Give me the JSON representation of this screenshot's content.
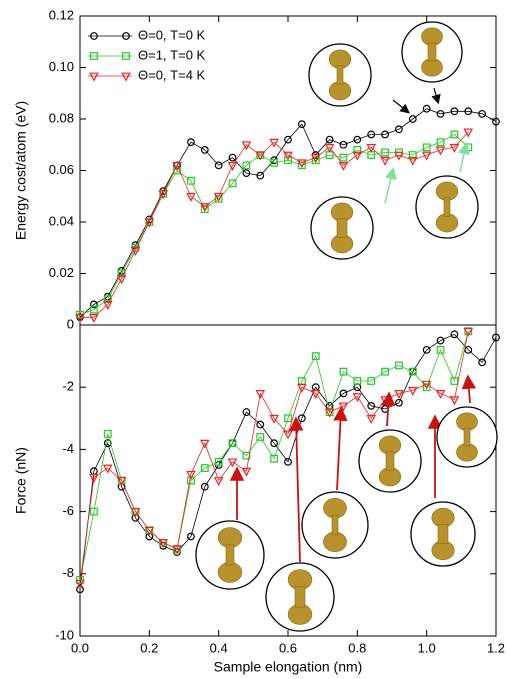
{
  "chart_data": [
    {
      "type": "line",
      "ylabel": "Energy cost/atom (eV)",
      "x": [
        0,
        0.04,
        0.08,
        0.12,
        0.16,
        0.2,
        0.24,
        0.28,
        0.32,
        0.36,
        0.4,
        0.44,
        0.48,
        0.52,
        0.56,
        0.6,
        0.64,
        0.68,
        0.72,
        0.76,
        0.8,
        0.84,
        0.88,
        0.92,
        0.96,
        1.0,
        1.04,
        1.08,
        1.12,
        1.16,
        1.2
      ],
      "xlim": [
        0,
        1.2
      ],
      "ylim": [
        0,
        0.12
      ],
      "yticks": [
        0,
        0.02,
        0.04,
        0.06,
        0.08,
        {
          "value": 0.1,
          "label": "0.10"
        },
        0.12
      ],
      "legend": "upper left",
      "series": [
        {
          "name": "Θ=0, T=0 K",
          "color": "#000000",
          "marker": "circle",
          "values": [
            0.003,
            0.008,
            0.011,
            0.021,
            0.031,
            0.041,
            0.052,
            0.062,
            0.071,
            0.068,
            0.062,
            0.065,
            0.059,
            0.058,
            0.064,
            0.072,
            0.078,
            0.066,
            0.072,
            0.07,
            0.072,
            0.074,
            0.074,
            0.076,
            0.08,
            0.084,
            0.082,
            0.083,
            0.083,
            0.082,
            0.079
          ]
        },
        {
          "name": "Θ=1, T=0 K",
          "color": "#22cc22",
          "marker": "square",
          "values": [
            0.004,
            0.006,
            0.01,
            0.02,
            0.03,
            0.04,
            0.051,
            0.06,
            0.056,
            0.045,
            0.049,
            0.055,
            0.062,
            0.066,
            0.063,
            0.064,
            0.062,
            0.064,
            0.066,
            0.065,
            0.068,
            0.066,
            0.067,
            0.067,
            0.066,
            0.069,
            0.071,
            0.074,
            0.069,
            null,
            null
          ]
        },
        {
          "name": "Θ=0, T=4 K",
          "color": "#ee2222",
          "marker": "triangle",
          "values": [
            0.003,
            0.003,
            0.008,
            0.018,
            0.029,
            0.04,
            0.051,
            0.062,
            0.05,
            0.046,
            0.05,
            0.062,
            0.07,
            0.066,
            0.071,
            0.066,
            0.063,
            0.065,
            0.069,
            0.062,
            0.066,
            0.069,
            0.064,
            0.066,
            0.064,
            0.066,
            0.068,
            0.069,
            0.075,
            null,
            null
          ]
        }
      ]
    },
    {
      "type": "line",
      "ylabel": "Force (nN)",
      "xlabel": "Sample elongation (nm)",
      "x": [
        0,
        0.04,
        0.08,
        0.12,
        0.16,
        0.2,
        0.24,
        0.28,
        0.32,
        0.36,
        0.4,
        0.44,
        0.48,
        0.52,
        0.56,
        0.6,
        0.64,
        0.68,
        0.72,
        0.76,
        0.8,
        0.84,
        0.88,
        0.92,
        0.96,
        1.0,
        1.04,
        1.08,
        1.12,
        1.16,
        1.2
      ],
      "xlim": [
        0,
        1.2
      ],
      "ylim": [
        -10,
        0
      ],
      "xticks": [
        {
          "value": 0,
          "label": "0.0"
        },
        0.2,
        0.4,
        0.6,
        0.8,
        {
          "value": 1,
          "label": "1.0"
        },
        1.2
      ],
      "yticks": [
        -10,
        -8,
        -6,
        -4,
        -2
      ],
      "series": [
        {
          "color": "#000000",
          "marker": "circle",
          "values": [
            -8.5,
            -4.7,
            -3.8,
            -5.2,
            -6.2,
            -6.8,
            -7.1,
            -7.3,
            -6.8,
            -5.2,
            -4.5,
            -3.8,
            -2.8,
            -3.2,
            -3.8,
            -4.4,
            -3.0,
            -2.0,
            -2.6,
            -2.2,
            -2.0,
            -2.6,
            -2.7,
            -2.5,
            -1.5,
            -0.8,
            -0.5,
            -0.3,
            -0.8,
            -1.2,
            -0.4
          ]
        },
        {
          "color": "#22cc22",
          "marker": "square",
          "values": [
            -8.2,
            -6.0,
            -3.5,
            -5.0,
            -6.0,
            -6.6,
            -7.0,
            -7.2,
            -5.0,
            -4.6,
            -4.4,
            -3.8,
            -4.2,
            -3.6,
            -4.3,
            -3.0,
            -1.8,
            -1.0,
            -2.8,
            -1.5,
            -1.8,
            -1.8,
            -1.5,
            -1.3,
            -1.5,
            -2.0,
            -0.8,
            -1.8,
            -0.2,
            null,
            null
          ]
        },
        {
          "color": "#ee2222",
          "marker": "triangle",
          "values": [
            -8.3,
            -4.9,
            -4.6,
            -5.0,
            -6.0,
            -6.6,
            -7.0,
            -7.2,
            -4.8,
            -3.8,
            -5.0,
            -4.4,
            -4.7,
            -2.2,
            -3.0,
            -3.5,
            -2.0,
            -2.2,
            -2.8,
            -2.6,
            -2.3,
            -3.0,
            -2.4,
            -2.2,
            -2.1,
            -1.9,
            -2.2,
            -2.4,
            -0.2,
            null,
            null
          ]
        }
      ]
    }
  ]
}
